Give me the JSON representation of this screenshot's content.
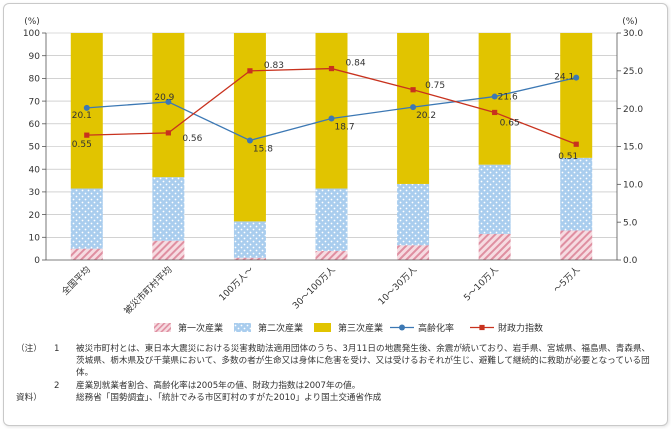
{
  "chart_data": {
    "type": "bar",
    "stacked": true,
    "categories": [
      "全国平均",
      "被災市町村平均",
      "100万人～",
      "30～100万人",
      "10～30万人",
      "5～10万人",
      "～5万人"
    ],
    "left_axis": {
      "unit": "(%)",
      "ylim": [
        0,
        100
      ],
      "ticks": [
        "0",
        "10",
        "20",
        "30",
        "40",
        "50",
        "60",
        "70",
        "80",
        "90",
        "100"
      ]
    },
    "right_axis": {
      "unit": "(%)",
      "ylim": [
        0,
        30
      ],
      "ticks": [
        "0.0",
        "5.0",
        "10.0",
        "15.0",
        "20.0",
        "25.0",
        "30.0"
      ]
    },
    "bar_series": [
      {
        "name": "第一次産業",
        "values": [
          5,
          8.5,
          1,
          4,
          6.5,
          11.5,
          13
        ]
      },
      {
        "name": "第二次産業",
        "values": [
          26.5,
          28,
          16,
          27.5,
          27,
          30.5,
          32
        ]
      },
      {
        "name": "第三次産業",
        "values": [
          68.5,
          63.5,
          83,
          68.5,
          66.5,
          58,
          55
        ]
      }
    ],
    "line_series": [
      {
        "name": "高齢化率",
        "axis": "right",
        "values": [
          20.1,
          20.9,
          15.8,
          18.7,
          20.2,
          21.6,
          24.1
        ],
        "labels": [
          "20.1",
          "20.9",
          "15.8",
          "18.7",
          "20.2",
          "21.6",
          "24.1"
        ]
      },
      {
        "name": "財政力指数",
        "axis": "right",
        "values": [
          16.5,
          16.8,
          25.0,
          25.3,
          22.5,
          19.5,
          15.3
        ],
        "labels": [
          "0.55",
          "0.56",
          "0.83",
          "0.84",
          "0.75",
          "0.65",
          "0.51"
        ]
      }
    ],
    "colors": {
      "primary": "#e8a3b1",
      "secondary": "#a9cdee",
      "tertiary": "#e1c400",
      "aging": "#3c78b4",
      "fiscal": "#c8321e",
      "grid": "#b8b8b8",
      "axis": "#555555"
    },
    "legend_position": "bottom"
  },
  "notes": {
    "label": "（注）",
    "items": [
      {
        "num": "1",
        "text": "被災市町村とは、東日本大震災における災害救助法適用団体のうち、3月11日の地震発生後、余震が続いており、岩手県、宮城県、福島県、青森県、茨城県、栃木県及び千葉県において、多数の者が生命又は身体に危害を受け、又は受けるおそれが生じ、避難して継続的に救助が必要となっている団体。"
      },
      {
        "num": "2",
        "text": "産業別就業者割合、高齢化率は2005年の値、財政力指数は2007年の値。"
      }
    ],
    "source_label": "資料）",
    "source_text": "総務省「国勢調査」、「統計でみる市区町村のすがた2010」より国土交通省作成"
  }
}
